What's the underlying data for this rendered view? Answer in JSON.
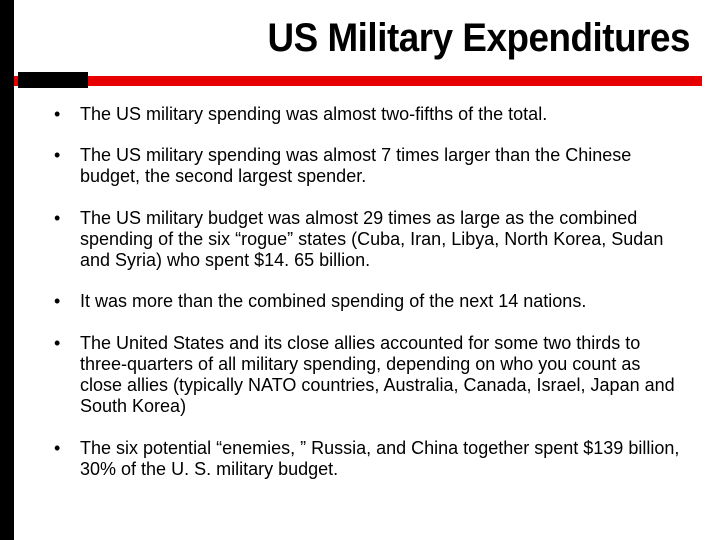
{
  "slide": {
    "title": "US Military Expenditures",
    "accent_color": "#e60000",
    "sidebar_color": "#000000",
    "background_color": "#ffffff",
    "title_fontsize": 40,
    "body_fontsize": 18,
    "bullets": [
      "The US military spending was almost two-fifths of the total.",
      "The US military spending was almost 7 times larger than the Chinese budget, the second largest spender.",
      "The US military budget was almost 29 times as large as the combined spending of the six “rogue” states (Cuba, Iran, Libya, North Korea, Sudan and Syria) who spent $14. 65 billion.",
      "It was more than the combined spending of the next 14 nations.",
      "The United States and its close allies accounted for some two thirds to three-quarters of all military spending, depending on who you count as close allies (typically NATO countries, Australia, Canada, Israel, Japan and South Korea)",
      "The six potential “enemies, ” Russia, and China together spent $139 billion, 30% of the U. S. military budget."
    ]
  }
}
